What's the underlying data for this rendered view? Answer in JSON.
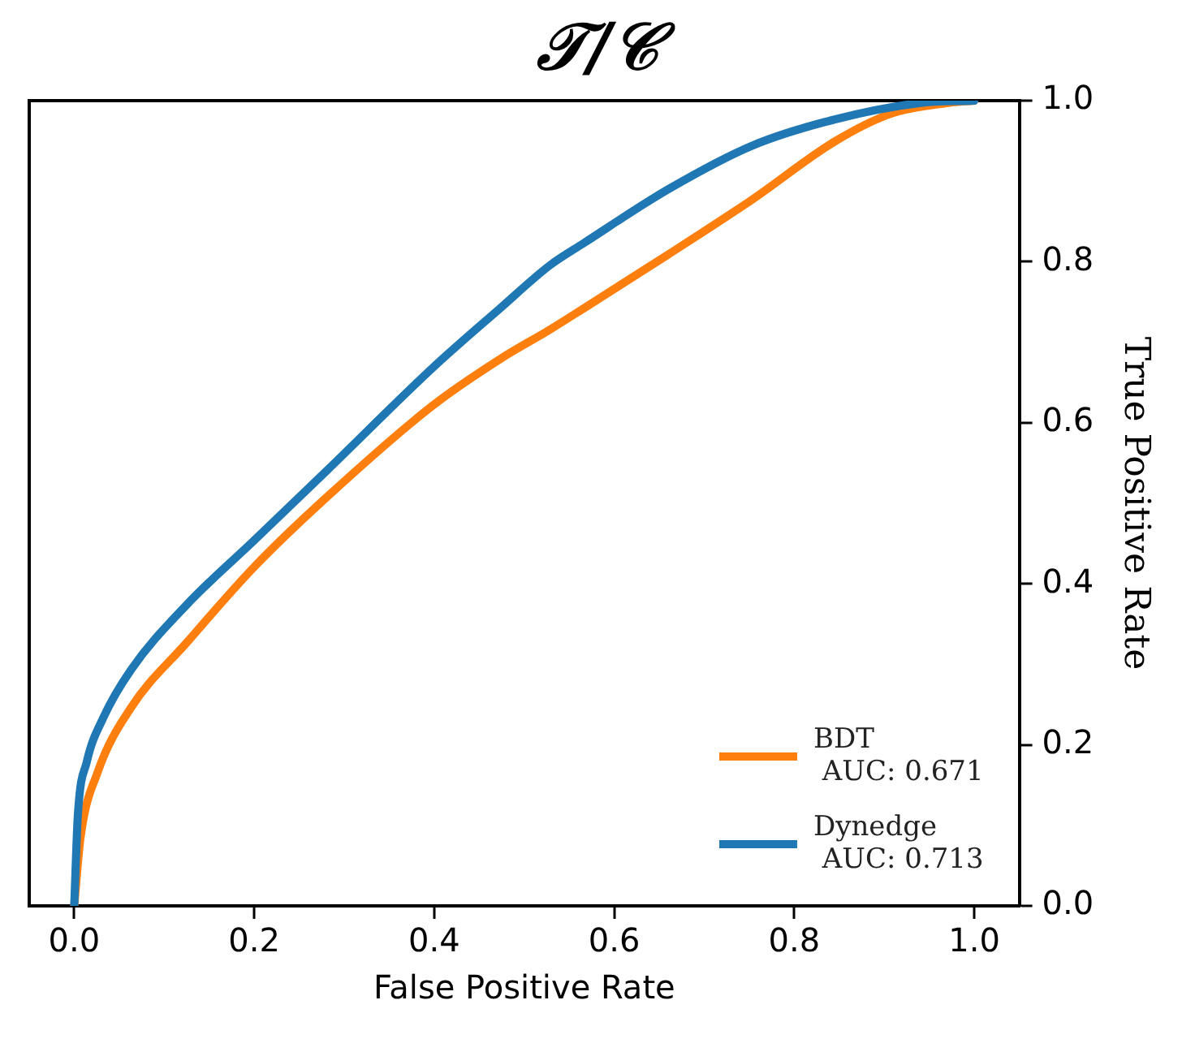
{
  "chart_data": {
    "type": "line",
    "title": "𝒯/𝒞",
    "xlabel": "False Positive Rate",
    "ylabel": "True Positive Rate",
    "xlim": [
      -0.05,
      1.05
    ],
    "ylim": [
      0,
      1
    ],
    "xticks": [
      {
        "value": 0,
        "label": "0.0"
      },
      {
        "value": 0.2,
        "label": "0.2"
      },
      {
        "value": 0.4,
        "label": "0.4"
      },
      {
        "value": 0.6,
        "label": "0.6"
      },
      {
        "value": 0.8,
        "label": "0.8"
      },
      {
        "value": 1,
        "label": "1.0"
      }
    ],
    "yticks": [
      {
        "value": 0,
        "label": "0.0"
      },
      {
        "value": 0.2,
        "label": "0.2"
      },
      {
        "value": 0.4,
        "label": "0.4"
      },
      {
        "value": 0.6,
        "label": "0.6"
      },
      {
        "value": 0.8,
        "label": "0.8"
      },
      {
        "value": 1,
        "label": "1.0"
      }
    ],
    "grid": false,
    "legend": "bottom right",
    "marker": "none",
    "line_style": "solid",
    "series": [
      {
        "name": "BDT\n AUC: 0.671",
        "color": "#ff7f0e",
        "x": [
          0,
          0.007,
          0.026,
          0.063,
          0.125,
          0.2,
          0.281,
          0.399,
          0.473,
          0.529,
          0.566,
          0.66,
          0.753,
          0.846,
          0.908,
          0.97,
          1
        ],
        "values": [
          0,
          0.085,
          0.166,
          0.246,
          0.327,
          0.421,
          0.508,
          0.622,
          0.679,
          0.716,
          0.742,
          0.809,
          0.877,
          0.95,
          0.984,
          0.997,
          1
        ]
      },
      {
        "name": "Dynedge\n AUC: 0.713",
        "color": "#1f77b4",
        "x": [
          0,
          0.004,
          0.014,
          0.032,
          0.063,
          0.125,
          0.2,
          0.281,
          0.399,
          0.473,
          0.529,
          0.566,
          0.66,
          0.753,
          0.846,
          0.939,
          1
        ],
        "values": [
          0,
          0.112,
          0.179,
          0.233,
          0.293,
          0.374,
          0.454,
          0.541,
          0.669,
          0.742,
          0.796,
          0.823,
          0.89,
          0.944,
          0.977,
          0.997,
          1
        ]
      }
    ]
  }
}
